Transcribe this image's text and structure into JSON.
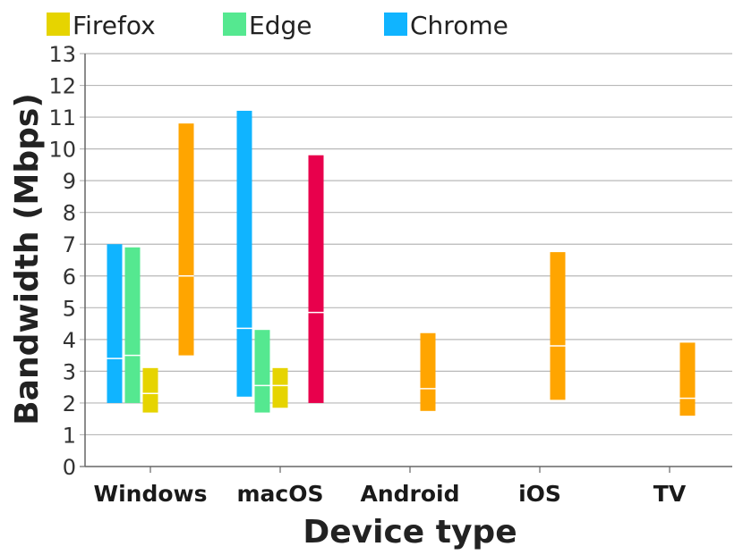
{
  "chart_data": {
    "type": "bar",
    "subtype": "floating-range",
    "xlabel": "Device type",
    "ylabel": "Bandwidth (Mbps)",
    "ylim": [
      0,
      13
    ],
    "yticks": [
      0,
      1,
      2,
      3,
      4,
      5,
      6,
      7,
      8,
      9,
      10,
      11,
      12,
      13
    ],
    "grid": true,
    "legend_position": "top",
    "categories": [
      "Windows",
      "macOS",
      "Android",
      "iOS",
      "TV"
    ],
    "legend": [
      {
        "name": "Firefox",
        "color": "#e6d400"
      },
      {
        "name": "Edge",
        "color": "#55e890"
      },
      {
        "name": "Chrome",
        "color": "#10b4ff"
      }
    ],
    "bars": [
      {
        "category": "Windows",
        "series": "Chrome",
        "color": "#10b4ff",
        "low": 2.0,
        "high": 7.0,
        "mid": 3.4
      },
      {
        "category": "Windows",
        "series": "Edge",
        "color": "#55e890",
        "low": 2.0,
        "high": 6.9,
        "mid": 3.5
      },
      {
        "category": "Windows",
        "series": "Firefox",
        "color": "#e6d400",
        "low": 1.7,
        "high": 3.1,
        "mid": 2.3
      },
      {
        "category": "Windows",
        "series": "",
        "color": "#ffa500",
        "low": 3.5,
        "high": 10.8,
        "mid": 6.0
      },
      {
        "category": "macOS",
        "series": "Chrome",
        "color": "#10b4ff",
        "low": 2.2,
        "high": 11.2,
        "mid": 4.35
      },
      {
        "category": "macOS",
        "series": "Edge",
        "color": "#55e890",
        "low": 1.7,
        "high": 4.3,
        "mid": 2.55
      },
      {
        "category": "macOS",
        "series": "Firefox",
        "color": "#e6d400",
        "low": 1.85,
        "high": 3.1,
        "mid": 2.55
      },
      {
        "category": "macOS",
        "series": "",
        "color": "#e8004c",
        "low": 2.0,
        "high": 9.8,
        "mid": 4.85
      },
      {
        "category": "Android",
        "series": "",
        "color": "#ffa500",
        "low": 1.75,
        "high": 4.2,
        "mid": 2.45
      },
      {
        "category": "iOS",
        "series": "",
        "color": "#ffa500",
        "low": 2.1,
        "high": 6.75,
        "mid": 3.8
      },
      {
        "category": "TV",
        "series": "",
        "color": "#ffa500",
        "low": 1.6,
        "high": 3.9,
        "mid": 2.15
      }
    ]
  }
}
